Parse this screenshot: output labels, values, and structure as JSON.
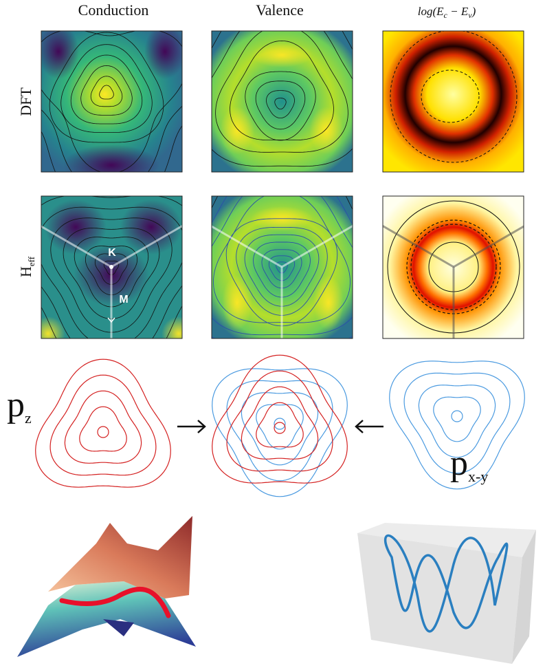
{
  "column_labels": [
    "Conduction",
    "Valence"
  ],
  "gap_label": {
    "parts": [
      "log(E",
      "c",
      " − E",
      "v",
      ")"
    ]
  },
  "row_labels": [
    {
      "base": "DFT"
    },
    {
      "base": "H",
      "sub": "eff"
    }
  ],
  "point_labels": [
    "K",
    "M"
  ],
  "orbital_labels": [
    {
      "base": "p",
      "sub": "z"
    },
    {
      "base": "p",
      "sub": "x-y"
    }
  ]
}
